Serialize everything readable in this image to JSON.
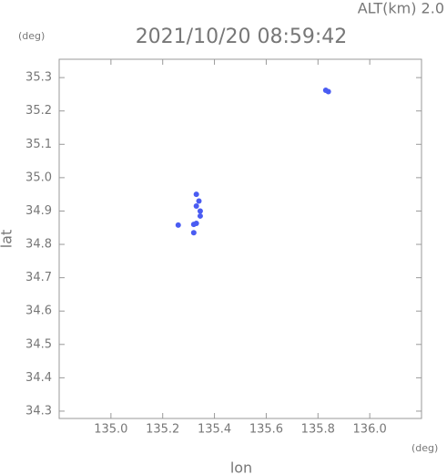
{
  "chart_data": {
    "type": "scatter",
    "annotation": "ALT(km) 2.0",
    "title": "2021/10/20 08:59:42",
    "y_unit": "(deg)",
    "x_unit": "(deg)",
    "xlabel": "lon",
    "ylabel": "lat",
    "xlim": [
      134.8,
      136.2
    ],
    "ylim": [
      34.278,
      35.355
    ],
    "xticks": [
      {
        "value": 135,
        "label": "135.0"
      },
      135.2,
      135.4,
      135.6,
      135.8,
      {
        "value": 136,
        "label": "136.0"
      }
    ],
    "yticks": [
      34.3,
      34.4,
      34.5,
      34.6,
      34.7,
      34.8,
      34.9,
      {
        "value": 35,
        "label": "35.0"
      },
      35.1,
      35.2,
      35.3
    ],
    "series": [
      {
        "color": "#4a5cf2",
        "x": [
          135.84,
          135.83,
          135.33,
          135.345,
          135.32,
          135.33,
          135.26,
          135.34,
          135.345,
          135.33,
          135.32
        ],
        "values": [
          35.258,
          35.262,
          34.915,
          34.9,
          34.86,
          34.863,
          34.858,
          34.93,
          34.885,
          34.95,
          34.835
        ]
      }
    ]
  }
}
